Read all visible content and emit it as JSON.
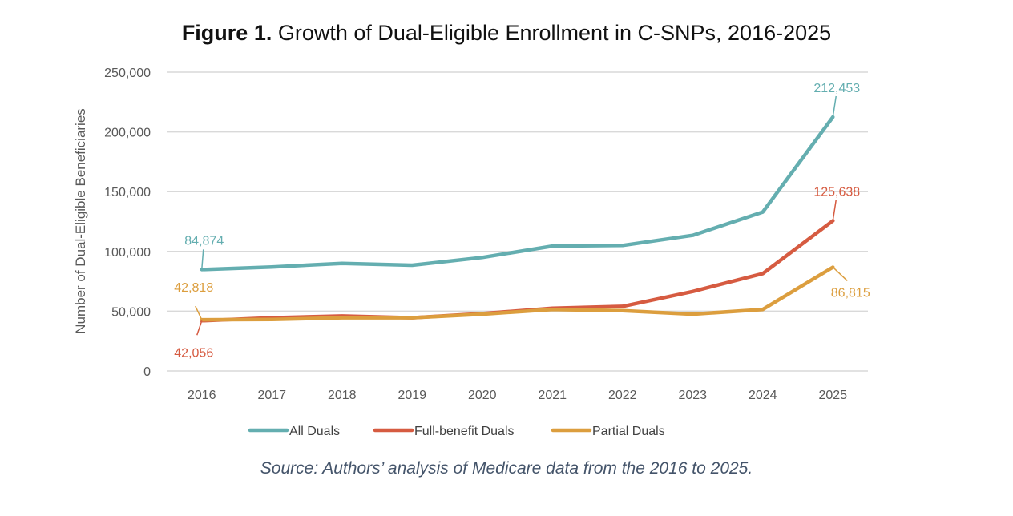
{
  "chart_data": {
    "type": "line",
    "title_bold": "Figure 1.",
    "title_rest": " Growth of Dual-Eligible Enrollment in C-SNPs, 2016-2025",
    "xlabel": "",
    "ylabel": "Number of Dual-Eligible Beneficiaries",
    "x": [
      "2016",
      "2017",
      "2018",
      "2019",
      "2020",
      "2021",
      "2022",
      "2023",
      "2024",
      "2025"
    ],
    "ylim": [
      0,
      250000
    ],
    "yticks": [
      0,
      50000,
      100000,
      150000,
      200000,
      250000
    ],
    "ytick_labels": [
      "0",
      "50,000",
      "100,000",
      "150,000",
      "200,000",
      "250,000"
    ],
    "grid": true,
    "legend_position": "bottom",
    "series": [
      {
        "name": "All Duals",
        "color": "#64aeb0",
        "values": [
          84874,
          87000,
          90000,
          88500,
          95000,
          104500,
          105000,
          113500,
          133000,
          212453
        ],
        "labels": [
          {
            "index": 0,
            "text": "84,874",
            "position": "above"
          },
          {
            "index": 9,
            "text": "212,453",
            "position": "above"
          }
        ]
      },
      {
        "name": "Full-benefit Duals",
        "color": "#d65b41",
        "values": [
          42056,
          44500,
          46000,
          44500,
          48000,
          52500,
          54000,
          66500,
          81500,
          125638
        ],
        "labels": [
          {
            "index": 0,
            "text": "42,056",
            "position": "below"
          },
          {
            "index": 9,
            "text": "125,638",
            "position": "above"
          }
        ]
      },
      {
        "name": "Partial Duals",
        "color": "#dc9e3e",
        "values": [
          42818,
          43000,
          44500,
          44500,
          47500,
          51500,
          50500,
          47500,
          51500,
          86815
        ],
        "labels": [
          {
            "index": 0,
            "text": "42,818",
            "position": "above"
          },
          {
            "index": 9,
            "text": "86,815",
            "position": "below-right"
          }
        ]
      }
    ],
    "source": "Source: Authors’ analysis of Medicare data from the 2016 to 2025."
  }
}
